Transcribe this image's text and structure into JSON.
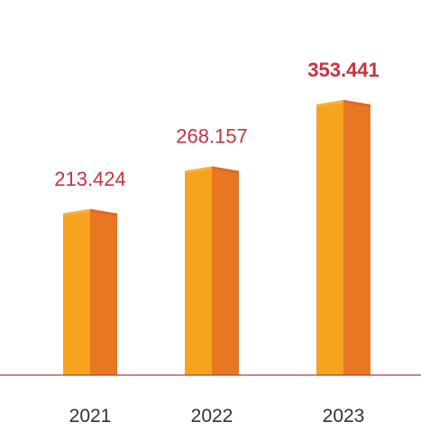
{
  "chart_data": {
    "type": "bar",
    "categories": [
      "2021",
      "2022",
      "2023"
    ],
    "values": [
      213.424,
      268.157,
      353.441
    ],
    "value_labels": [
      "213.424",
      "268.157",
      "353.441"
    ],
    "highlight_index": 2,
    "title": "",
    "xlabel": "",
    "ylabel": "",
    "ylim": [
      0,
      380
    ],
    "grid": false,
    "legend": "none"
  },
  "colors": {
    "bar_front": "#f6a31d",
    "bar_side": "#e87722",
    "bar_top_front": "#f5b13a",
    "bar_top_side": "#e06a1c",
    "baseline": "#c8333e",
    "value_label": "#c8333e",
    "category_label": "#333333"
  }
}
